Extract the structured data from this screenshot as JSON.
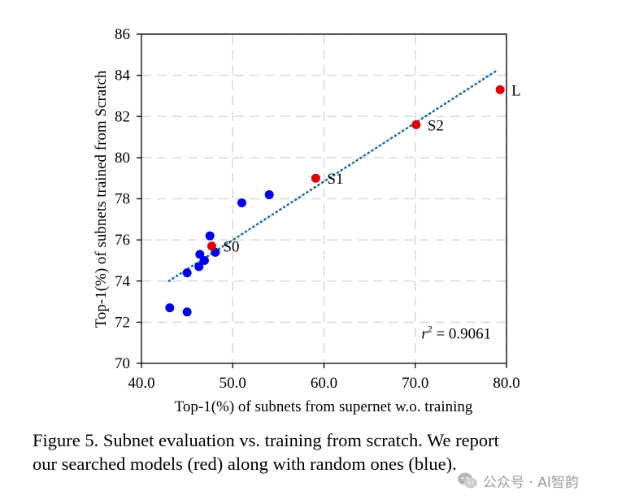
{
  "chart_data": {
    "type": "scatter",
    "title": "",
    "xlabel": "Top-1(%) of subnets from supernet w.o. training",
    "ylabel": "Top-1(%) of subnets trained from Scratch",
    "xlim": [
      40,
      80
    ],
    "ylim": [
      70,
      86
    ],
    "x_ticks": [
      40,
      50,
      60,
      70,
      80
    ],
    "x_tick_labels": [
      "40.0",
      "50.0",
      "60.0",
      "70.0",
      "80.0"
    ],
    "y_ticks": [
      70,
      72,
      74,
      76,
      78,
      80,
      82,
      84,
      86
    ],
    "y_tick_labels": [
      "70",
      "72",
      "74",
      "76",
      "78",
      "80",
      "82",
      "84",
      "86"
    ],
    "grid": true,
    "series": [
      {
        "name": "random",
        "color": "#0000ee",
        "points": [
          {
            "x": 43.1,
            "y": 72.7
          },
          {
            "x": 45.0,
            "y": 72.5
          },
          {
            "x": 45.0,
            "y": 74.4
          },
          {
            "x": 46.3,
            "y": 74.7
          },
          {
            "x": 46.4,
            "y": 75.3
          },
          {
            "x": 46.9,
            "y": 75.0
          },
          {
            "x": 47.5,
            "y": 76.2
          },
          {
            "x": 48.1,
            "y": 75.4
          },
          {
            "x": 51.0,
            "y": 77.8
          },
          {
            "x": 54.0,
            "y": 78.2
          }
        ]
      },
      {
        "name": "searched",
        "color": "#e30000",
        "points": [
          {
            "x": 47.7,
            "y": 75.7,
            "label": "S0"
          },
          {
            "x": 59.1,
            "y": 79.0,
            "label": "S1"
          },
          {
            "x": 70.1,
            "y": 81.6,
            "label": "S2"
          },
          {
            "x": 79.3,
            "y": 83.3,
            "label": "L"
          }
        ]
      }
    ],
    "trendline": {
      "color": "#1f6fa8",
      "x_start": 43.0,
      "x_end": 79.0,
      "y_start": 74.0,
      "y_end": 84.25
    },
    "annotation": {
      "r_symbol": "r",
      "superscript": "2",
      "value_text": " = 0.9061",
      "x": 74.5,
      "y": 71.2
    }
  },
  "caption": {
    "line1": "Figure 5. Subnet evaluation vs. training from scratch. We report",
    "line2": "our searched models (red) along with random ones (blue)."
  },
  "watermark": {
    "icon": "wechat-icon",
    "text": "公众号 · AI智韵"
  }
}
